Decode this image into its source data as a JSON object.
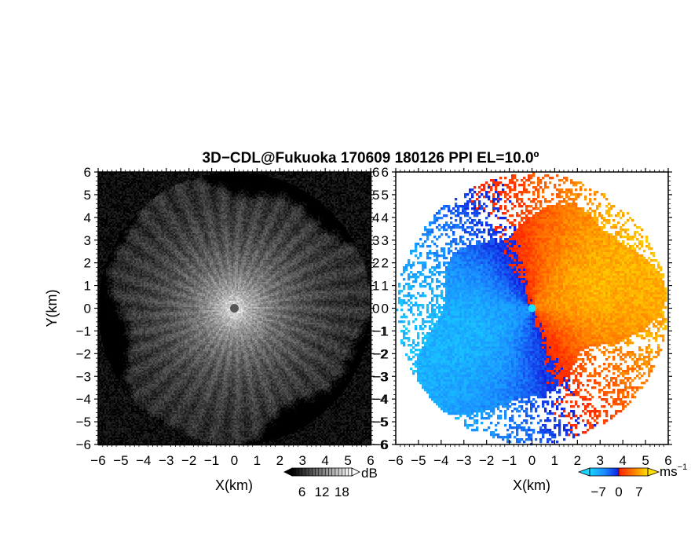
{
  "title": "3D−CDL@Fukuoka 170609 180126 PPI EL=10.0º",
  "chart_data": [
    {
      "type": "heatmap",
      "name": "echo intensity",
      "xlabel": "X(km)",
      "ylabel": "Y(km)",
      "xlim": [
        -6,
        6
      ],
      "ylim": [
        -6,
        6
      ],
      "xticks": [
        "−6",
        "−5",
        "−4",
        "−3",
        "−2",
        "−1",
        "0",
        "1",
        "2",
        "3",
        "4",
        "5",
        "6"
      ],
      "yticks": [
        "−6",
        "−5",
        "−4",
        "−3",
        "−2",
        "−1",
        "0",
        "1",
        "2",
        "3",
        "4",
        "5",
        "6"
      ],
      "colorbar": {
        "unit": "dB",
        "ticks": [
          "6",
          "12",
          "18"
        ],
        "range": [
          3,
          21
        ],
        "colors": [
          "#000000",
          "#ffffff"
        ]
      },
      "center_value_db": 9,
      "max_range_km": 6.0
    },
    {
      "type": "heatmap",
      "name": "doppler velocity",
      "xlabel": "X(km)",
      "ylabel": "",
      "xlim": [
        -6,
        6
      ],
      "ylim": [
        -6,
        6
      ],
      "xticks": [
        "−6",
        "−5",
        "−4",
        "−3",
        "−2",
        "−1",
        "0",
        "1",
        "2",
        "3",
        "4",
        "5",
        "6"
      ],
      "yticks": [
        "−6",
        "−5",
        "−4",
        "−3",
        "−2",
        "−1",
        "0",
        "1",
        "2",
        "3",
        "4",
        "5",
        "6"
      ],
      "colorbar": {
        "unit": "ms",
        "unit_exp": "−1",
        "ticks": [
          "−7",
          "0",
          "7"
        ],
        "range": [
          -10,
          10
        ],
        "colors": [
          "#19d4ff",
          "#1a8cff",
          "#1020e0",
          "#ff2000",
          "#ff7a00",
          "#ffe000"
        ]
      },
      "wind": {
        "speed_ms": 7,
        "toward_deg_math": 20
      },
      "max_range_km": 5.95
    }
  ]
}
